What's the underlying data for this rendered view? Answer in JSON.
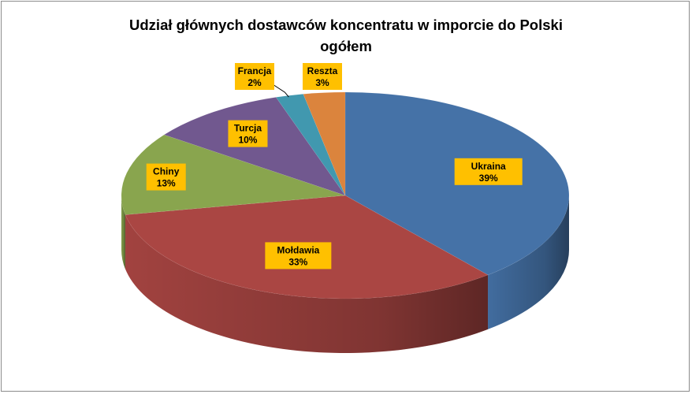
{
  "chart_data": {
    "type": "pie",
    "title_lines": [
      "Udział głównych dostawców koncentratu w imporcie do Polski",
      "ogółem"
    ],
    "categories": [
      "Ukraina",
      "Mołdawia",
      "Chiny",
      "Turcja",
      "Francja",
      "Reszta"
    ],
    "values": [
      39,
      33,
      13,
      10,
      2,
      3
    ],
    "labels": [
      "39%",
      "33%",
      "13%",
      "10%",
      "2%",
      "3%"
    ],
    "colors": [
      "#4572A7",
      "#AA4643",
      "#89A54E",
      "#71588F",
      "#4198AF",
      "#DB843D"
    ],
    "label_background": "#FFC000",
    "style": "3d",
    "legend": "none"
  }
}
